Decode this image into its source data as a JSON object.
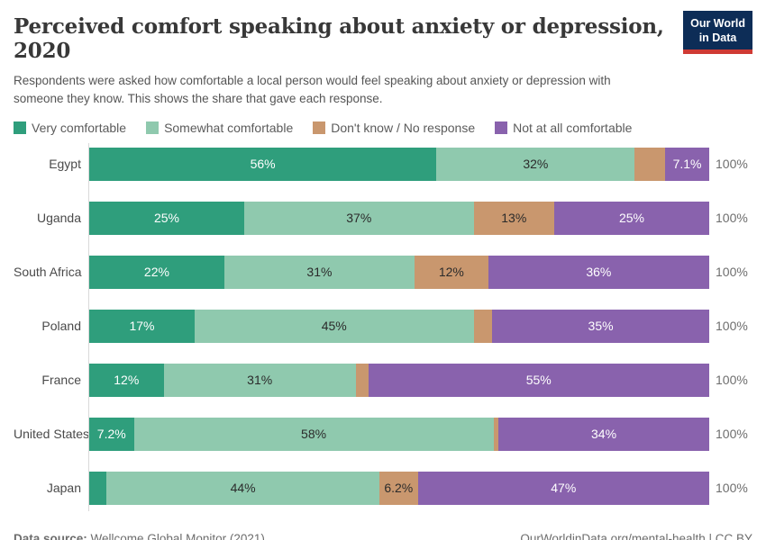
{
  "header": {
    "title": "Perceived comfort speaking about anxiety or depression, 2020",
    "subtitle": "Respondents were asked how comfortable a local person would feel speaking about anxiety or depression with someone they know. This shows the share that gave each response.",
    "logo": {
      "line1": "Our World",
      "line2": "in Data",
      "bg_color": "#0d2d57",
      "accent_color": "#cf3a34"
    }
  },
  "chart_data": {
    "type": "bar",
    "variant": "horizontal-stacked",
    "title": "Perceived comfort speaking about anxiety or depression, 2020",
    "categories": [
      "Egypt",
      "Uganda",
      "South Africa",
      "Poland",
      "France",
      "United States",
      "Japan"
    ],
    "series": [
      {
        "name": "Very comfortable",
        "color": "#2f9e7c",
        "label_color": "#ffffff",
        "values": [
          56,
          25,
          22,
          17,
          12,
          7.2,
          2.8
        ],
        "labels": [
          "56%",
          "25%",
          "22%",
          "17%",
          "12%",
          "7.2%",
          ""
        ]
      },
      {
        "name": "Somewhat comfortable",
        "color": "#8fc9ae",
        "label_color": "#2b2b2b",
        "values": [
          32,
          37,
          31,
          45,
          31,
          58,
          44
        ],
        "labels": [
          "32%",
          "37%",
          "31%",
          "45%",
          "31%",
          "58%",
          "44%"
        ]
      },
      {
        "name": "Don't know / No response",
        "color": "#c9976e",
        "label_color": "#2b2b2b",
        "values": [
          4.9,
          13,
          12,
          3,
          2,
          0.8,
          6.2
        ],
        "labels": [
          "",
          "13%",
          "12%",
          "",
          "",
          "",
          "6.2%"
        ]
      },
      {
        "name": "Not at all comfortable",
        "color": "#8962ad",
        "label_color": "#ffffff",
        "values": [
          7.1,
          25,
          36,
          35,
          55,
          34,
          47
        ],
        "labels": [
          "7.1%",
          "25%",
          "36%",
          "35%",
          "55%",
          "34%",
          "47%"
        ]
      }
    ],
    "xlim": [
      0,
      100
    ],
    "bar_total_label": "100%",
    "legend_position": "top",
    "axis_line_color": "#d9d9d9"
  },
  "footer": {
    "source_label": "Data source:",
    "source_value": "Wellcome Global Monitor (2021)",
    "attribution": "OurWorldinData.org/mental-health | CC BY"
  }
}
